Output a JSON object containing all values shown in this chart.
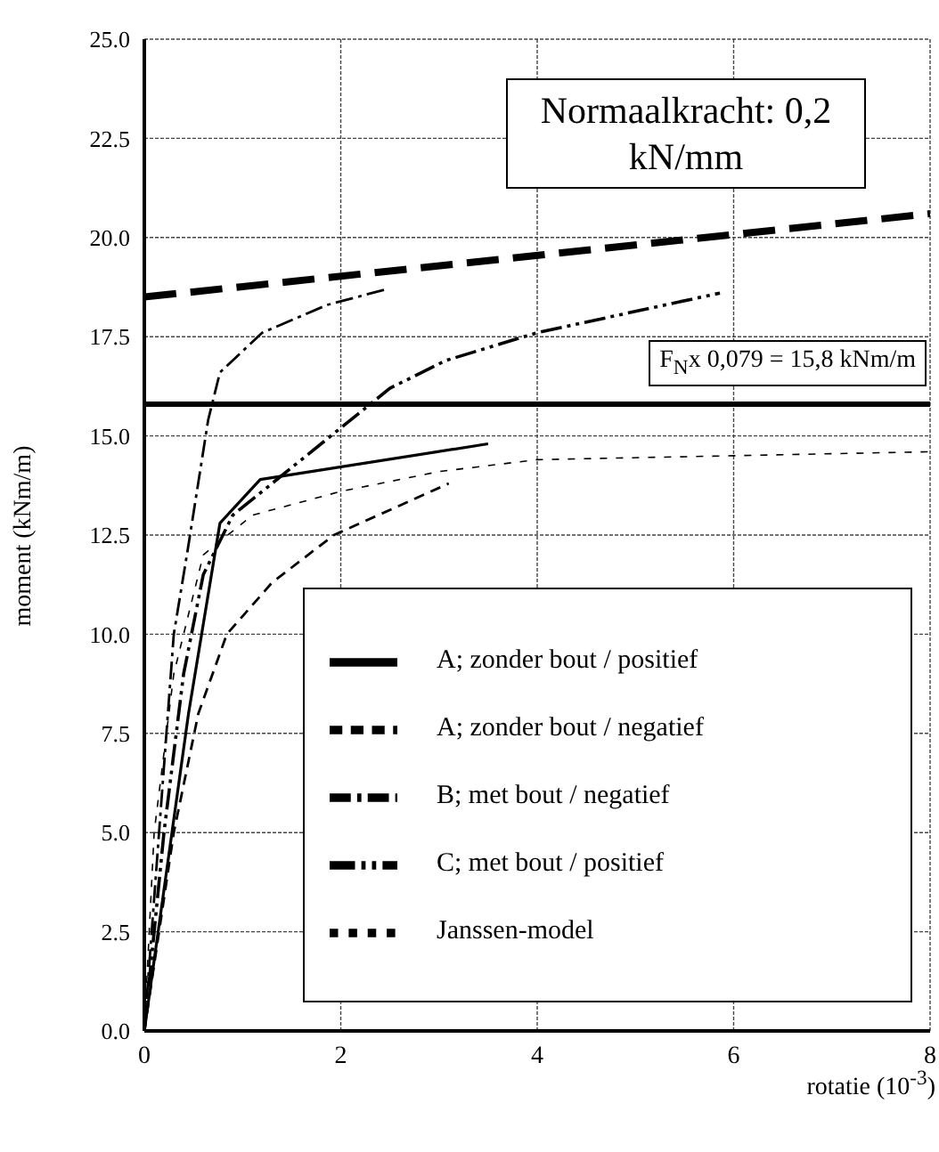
{
  "chart_data": {
    "type": "line",
    "xlabel": "rotatie (10$^{-3}$)",
    "ylabel": "moment (kNm/m)",
    "xlim": [
      0,
      8
    ],
    "xticks": [
      0,
      2,
      4,
      6,
      8
    ],
    "ylim": [
      0,
      25
    ],
    "yticks": [
      {
        "value": 0,
        "label": "0.0"
      },
      {
        "value": 2.5,
        "label": "2.5"
      },
      {
        "value": 5,
        "label": "5.0"
      },
      {
        "value": 7.5,
        "label": "7.5"
      },
      {
        "value": 10,
        "label": "10.0"
      },
      {
        "value": 12.5,
        "label": "12.5"
      },
      {
        "value": 15,
        "label": "15.0"
      },
      {
        "value": 17.5,
        "label": "17.5"
      },
      {
        "value": 20,
        "label": "20.0"
      },
      {
        "value": 22.5,
        "label": "22.5"
      },
      {
        "value": 25,
        "label": "25.0"
      }
    ],
    "grid": true,
    "legend": "bottom right",
    "marker": "none",
    "series": [
      {
        "name": "A; zonder bout / positief",
        "color": "#000000",
        "line_style": "solid",
        "x": [
          0,
          0.45,
          0.77,
          1.18,
          3.5
        ],
        "values": [
          0,
          8,
          12.8,
          13.9,
          14.8
        ]
      },
      {
        "name": "A; zonder bout / negatief",
        "color": "#000000",
        "line_style": "dashed",
        "x": [
          0,
          0.3,
          0.55,
          0.84,
          1.3,
          1.93,
          3.1
        ],
        "values": [
          0,
          5,
          8,
          10,
          11.3,
          12.5,
          13.8
        ]
      },
      {
        "name": "B; met bout / negatief",
        "color": "#000000",
        "line_style": "dashdot",
        "x": [
          0,
          0.15,
          0.3,
          0.44,
          0.65,
          0.77,
          1.2,
          1.86,
          2.47
        ],
        "values": [
          0,
          5,
          10,
          12.1,
          15.4,
          16.6,
          17.6,
          18.3,
          18.7
        ]
      },
      {
        "name": "C; met bout / positief",
        "color": "#000000",
        "line_style": "dashdotdot",
        "x": [
          0,
          0.2,
          0.4,
          0.6,
          0.9,
          1.3,
          2,
          2.5,
          3.07,
          4,
          5.86
        ],
        "values": [
          0,
          5,
          9,
          11.5,
          13,
          13.8,
          15.2,
          16.2,
          16.9,
          17.6,
          18.6
        ]
      },
      {
        "name": "Janssen-model",
        "color": "#000000",
        "line_style": "dotted",
        "x": [
          0,
          0.1,
          0.3,
          0.6,
          1.1,
          2,
          3,
          4,
          6,
          8
        ],
        "values": [
          0,
          5,
          9,
          12,
          13,
          13.6,
          14.1,
          14.4,
          14.5,
          14.6
        ]
      },
      {
        "color": "#000000",
        "line_style": "longdash",
        "x": [
          0,
          8
        ],
        "values": [
          18.5,
          20.6
        ]
      }
    ],
    "ref_lines": [
      {
        "axis": "y",
        "value": 15.8,
        "label": "F$_{N}$x 0,079 = 15,8 kNm/m"
      }
    ],
    "annotations": [
      "Normaalkracht: 0,2 kN/mm"
    ]
  }
}
